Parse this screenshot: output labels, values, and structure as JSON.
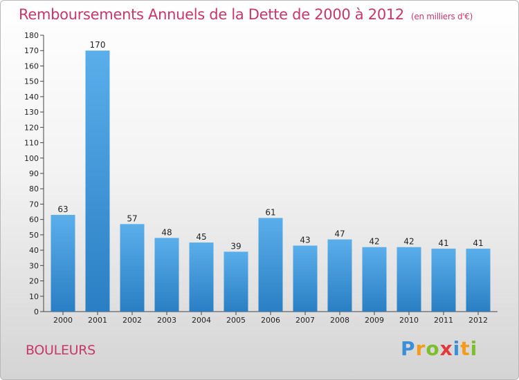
{
  "title": "Remboursements Annuels de la Dette de 2000 à 2012",
  "unit": "(en milliers d'€)",
  "commune": "BOULEURS",
  "logo": {
    "p": "P",
    "r": "r",
    "o": "o",
    "x": "x",
    "i1": "i",
    "t": "t",
    "i2": "i"
  },
  "colors": {
    "accent": "#c8366a",
    "bar_light": "#5aaeea",
    "bar_dark": "#2a7fc4"
  },
  "chart_data": {
    "type": "bar",
    "categories": [
      "2000",
      "2001",
      "2002",
      "2003",
      "2004",
      "2005",
      "2006",
      "2007",
      "2008",
      "2009",
      "2010",
      "2011",
      "2012"
    ],
    "values": [
      63,
      170,
      57,
      48,
      45,
      39,
      61,
      43,
      47,
      42,
      42,
      41,
      41
    ],
    "ylim": [
      0,
      180
    ],
    "yticks": [
      0,
      10,
      20,
      30,
      40,
      50,
      60,
      70,
      80,
      90,
      100,
      110,
      120,
      130,
      140,
      150,
      160,
      170,
      180
    ],
    "grid": false,
    "legend": "none"
  }
}
